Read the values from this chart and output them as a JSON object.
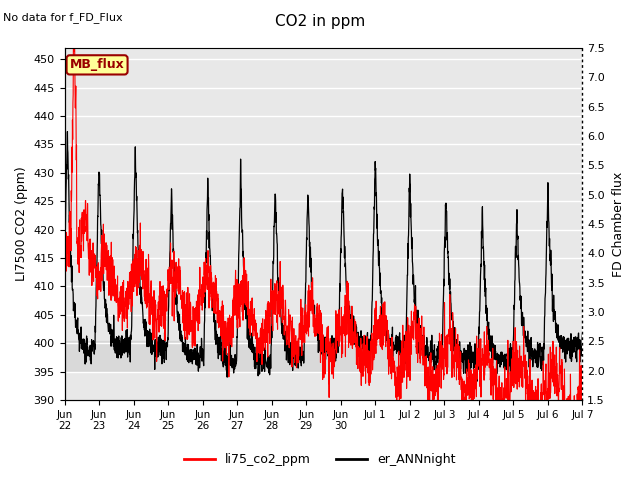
{
  "title": "CO2 in ppm",
  "ylabel_left": "LI7500 CO2 (ppm)",
  "ylabel_right": "FD Chamber flux",
  "ylim_left": [
    390,
    452
  ],
  "ylim_right": [
    1.5,
    7.5
  ],
  "yticks_left": [
    390,
    395,
    400,
    405,
    410,
    415,
    420,
    425,
    430,
    435,
    440,
    445,
    450
  ],
  "yticks_right": [
    1.5,
    2.0,
    2.5,
    3.0,
    3.5,
    4.0,
    4.5,
    5.0,
    5.5,
    6.0,
    6.5,
    7.0,
    7.5
  ],
  "no_data_text": "No data for f_FD_Flux",
  "mb_flux_label": "MB_flux",
  "legend_labels": [
    "li75_co2_ppm",
    "er_ANNnight"
  ],
  "legend_colors": [
    "#ff0000",
    "#000000"
  ],
  "bg_color": "#e8e8e8",
  "band_ymin_flux": 2.0,
  "band_ymax_flux": 2.5,
  "mb_flux_box_color": "#ffff99",
  "mb_flux_box_edge": "#990000",
  "xtick_positions": [
    0,
    1,
    2,
    3,
    4,
    5,
    6,
    7,
    8,
    9,
    10,
    11,
    12,
    13,
    14,
    15
  ],
  "xtick_labels": [
    "Jun\n22",
    "Jun\n23",
    "Jun\n24",
    "Jun\n25",
    "Jun\n26",
    "Jun\n27",
    "Jun\n28",
    "Jun\n29",
    "Jun\n30",
    "Jul 1",
    "Jul 2",
    "Jul 3",
    "Jul 4",
    "Jul 5",
    "Jul 6",
    "Jul 7"
  ]
}
